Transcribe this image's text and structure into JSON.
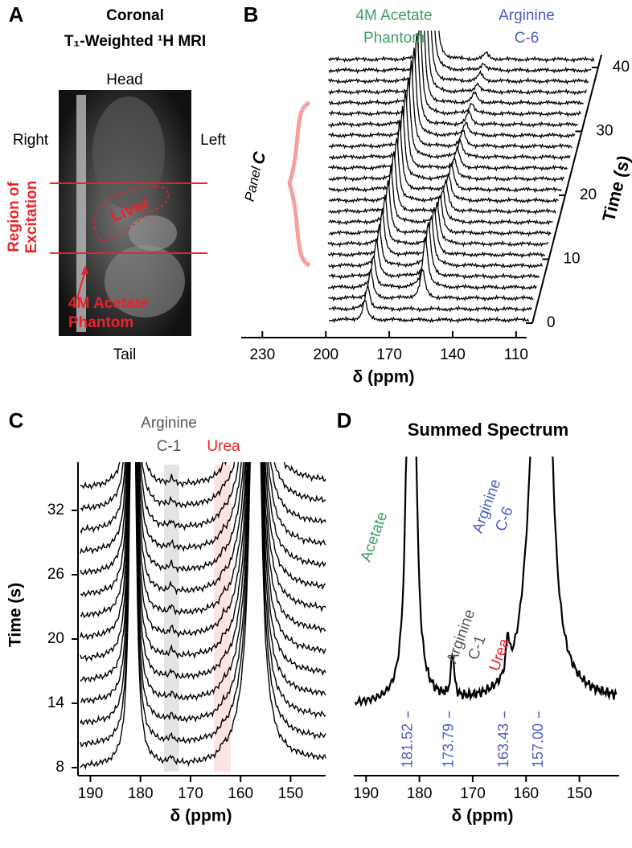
{
  "figure": {
    "panel_a": {
      "letter": "A",
      "title": "Coronal",
      "subtitle": "T₁-Weighted ¹H MRI",
      "top": "Head",
      "bottom": "Tail",
      "left_side": "Right",
      "right_side": "Left",
      "region": [
        "Region of",
        "Excitation"
      ],
      "organ": "Liver",
      "phantom": [
        "4M Acetate",
        "Phantom"
      ]
    },
    "panel_b": {
      "letter": "B",
      "acetate": [
        "4M Acetate",
        "Phantom"
      ],
      "arginine": [
        "Arginine",
        "C-6"
      ],
      "panel_ref": [
        "Panel",
        "C"
      ],
      "x_label": "δ (ppm)",
      "xlim": [
        240,
        105
      ],
      "xticks": [
        230,
        200,
        170,
        140,
        110
      ],
      "time_label": "Time (s)",
      "tlim": [
        0,
        42
      ],
      "tticks": [
        0,
        10,
        20,
        30,
        40
      ]
    },
    "panel_c": {
      "letter": "C",
      "arginine": [
        "Arginine",
        "C-1"
      ],
      "urea": "Urea",
      "x_label": "δ (ppm)",
      "xlim": [
        192,
        143
      ],
      "xticks": [
        190,
        180,
        170,
        160,
        150
      ],
      "y_label": "Time (s)",
      "ylim": [
        6.5,
        36
      ],
      "yticks": [
        8,
        14,
        20,
        26,
        32
      ]
    },
    "panel_d": {
      "letter": "D",
      "title": "Summed Spectrum",
      "acetate": "Acetate",
      "arginine_c6": [
        "Arginine",
        "C-6"
      ],
      "arginine_c1": [
        "Arginine",
        "C-1"
      ],
      "urea": "Urea",
      "peaks": [
        181.52,
        173.79,
        163.43,
        {
          "value": 157,
          "label": "157.00"
        }
      ],
      "x_label": "δ (ppm)",
      "xlim": [
        192,
        143
      ],
      "xticks": [
        190,
        180,
        170,
        160,
        150
      ]
    }
  }
}
